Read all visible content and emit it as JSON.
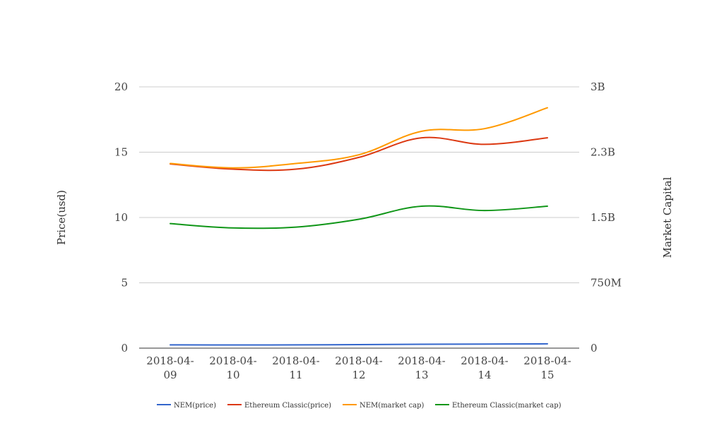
{
  "chart_data": {
    "type": "line",
    "x": [
      "2018-04-09",
      "2018-04-10",
      "2018-04-11",
      "2018-04-12",
      "2018-04-13",
      "2018-04-14",
      "2018-04-15"
    ],
    "x_tick_lines": [
      [
        "2018-04-",
        "09"
      ],
      [
        "2018-04-",
        "10"
      ],
      [
        "2018-04-",
        "11"
      ],
      [
        "2018-04-",
        "12"
      ],
      [
        "2018-04-",
        "13"
      ],
      [
        "2018-04-",
        "14"
      ],
      [
        "2018-04-",
        "15"
      ]
    ],
    "ylabel_left": "Price(usd)",
    "ylabel_right": "Market Capital",
    "ylim_left": [
      0,
      20
    ],
    "ylim_right": [
      0,
      3000000000
    ],
    "yticks_left": [
      0,
      5,
      10,
      15,
      20
    ],
    "yticks_left_labels": [
      "0",
      "5",
      "10",
      "15",
      "20"
    ],
    "yticks_right": [
      0,
      750000000,
      1500000000,
      2250000000,
      3000000000
    ],
    "yticks_right_labels": [
      "0",
      "750M",
      "1.5B",
      "2.3B",
      "3B"
    ],
    "grid": true,
    "legend_position": "bottom",
    "series": [
      {
        "name": "NEM(price)",
        "axis": "left",
        "color": "#3366cc",
        "values": [
          0.25,
          0.24,
          0.25,
          0.27,
          0.3,
          0.31,
          0.33
        ]
      },
      {
        "name": "Ethereum Classic(price)",
        "axis": "left",
        "color": "#dc3912",
        "values": [
          14.1,
          13.7,
          13.7,
          14.6,
          16.1,
          15.6,
          16.1
        ]
      },
      {
        "name": "NEM(market cap)",
        "axis": "right",
        "color": "#ff9900",
        "values": [
          2120000000,
          2070000000,
          2120000000,
          2220000000,
          2490000000,
          2520000000,
          2760000000
        ]
      },
      {
        "name": "Ethereum Classic(market cap)",
        "axis": "right",
        "color": "#109618",
        "values": [
          1430000000,
          1380000000,
          1390000000,
          1480000000,
          1630000000,
          1580000000,
          1630000000
        ]
      }
    ]
  }
}
